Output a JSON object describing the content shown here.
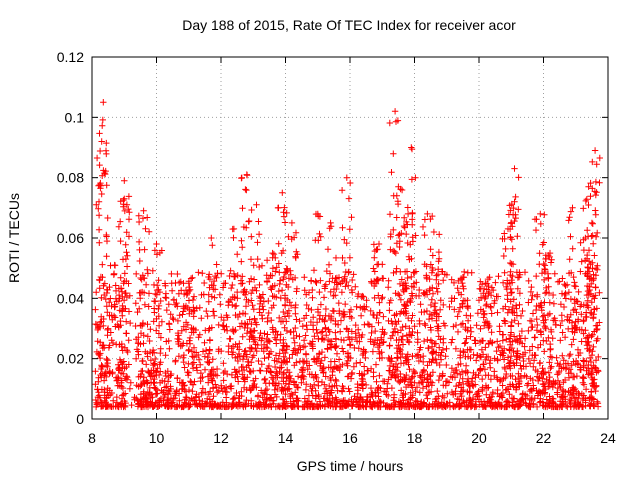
{
  "colors": {
    "points": "#ff0000",
    "background": "#ffffff",
    "grid": "#a0a0a0"
  },
  "chart_data": {
    "type": "scatter",
    "title": "Day 188 of 2015, Rate Of TEC Index for receiver acor",
    "xlabel": "GPS time / hours",
    "ylabel": "ROTI / TECUs",
    "xlim": [
      8,
      24
    ],
    "ylim": [
      0,
      0.12
    ],
    "xticks": [
      "8",
      "10",
      "12",
      "14",
      "16",
      "18",
      "20",
      "22",
      "24"
    ],
    "yticks": [
      "0",
      "0.02",
      "0.04",
      "0.06",
      "0.08",
      "0.1",
      "0.12"
    ],
    "grid": true,
    "marker": "plus",
    "peaks": [
      [
        8.35,
        0.105
      ],
      [
        8.3,
        0.092
      ],
      [
        9.0,
        0.079
      ],
      [
        9.0,
        0.073
      ],
      [
        8.7,
        0.051
      ],
      [
        9.6,
        0.069
      ],
      [
        10.0,
        0.058
      ],
      [
        11.0,
        0.045
      ],
      [
        11.7,
        0.06
      ],
      [
        12.4,
        0.063
      ],
      [
        12.8,
        0.081
      ],
      [
        13.1,
        0.071
      ],
      [
        13.6,
        0.055
      ],
      [
        13.9,
        0.075
      ],
      [
        14.2,
        0.065
      ],
      [
        15.0,
        0.068
      ],
      [
        15.4,
        0.065
      ],
      [
        15.9,
        0.08
      ],
      [
        16.9,
        0.058
      ],
      [
        17.4,
        0.102
      ],
      [
        17.5,
        0.077
      ],
      [
        17.9,
        0.09
      ],
      [
        17.8,
        0.068
      ],
      [
        18.4,
        0.068
      ],
      [
        18.6,
        0.062
      ],
      [
        19.5,
        0.047
      ],
      [
        20.2,
        0.045
      ],
      [
        20.9,
        0.063
      ],
      [
        21.1,
        0.083
      ],
      [
        21.1,
        0.072
      ],
      [
        21.9,
        0.068
      ],
      [
        22.2,
        0.055
      ],
      [
        22.9,
        0.07
      ],
      [
        23.4,
        0.077
      ],
      [
        23.6,
        0.089
      ],
      [
        23.5,
        0.065
      ],
      [
        23.3,
        0.06
      ]
    ]
  }
}
